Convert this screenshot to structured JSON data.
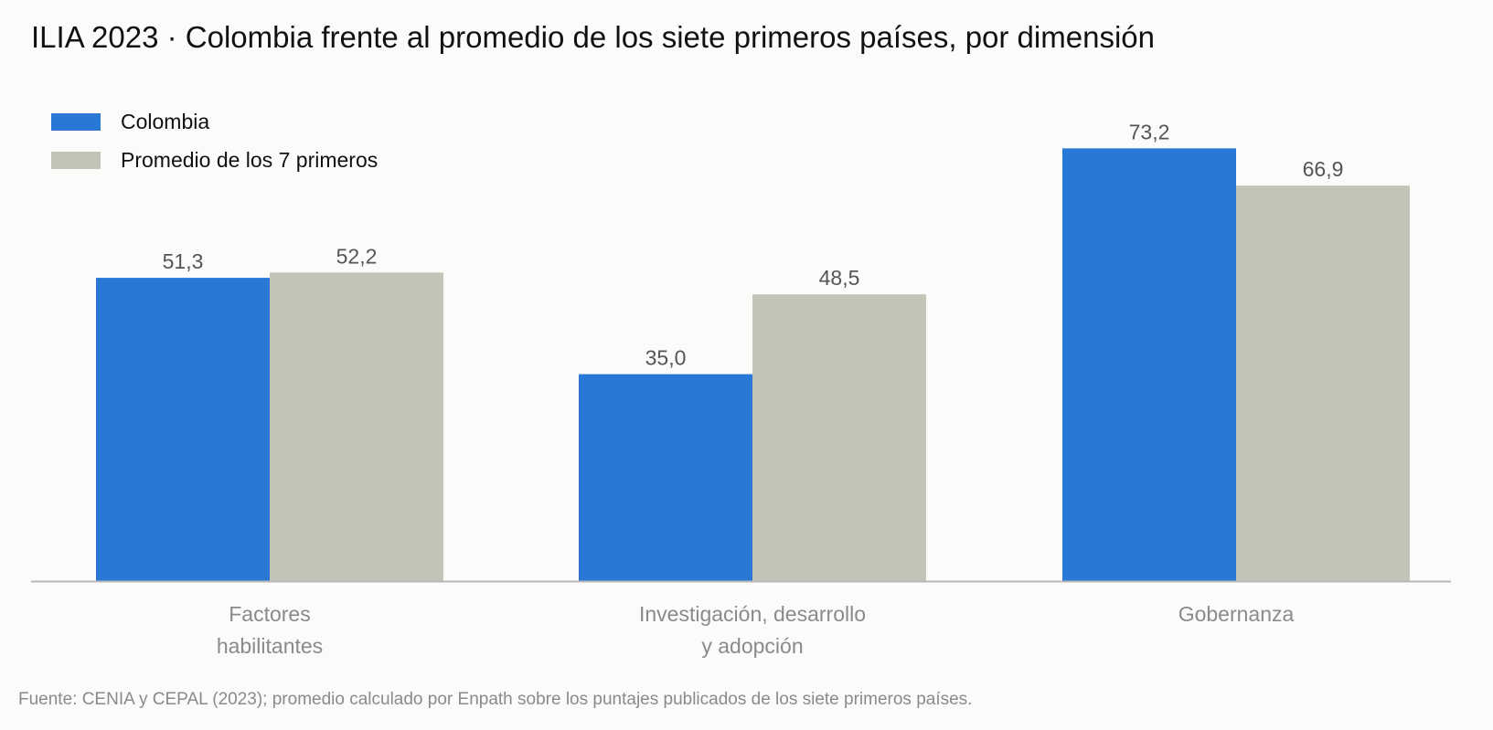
{
  "title": "ILIA 2023 · Colombia frente al promedio de los siete primeros países, por dimensión",
  "source": "Fuente: CENIA y CEPAL (2023); promedio calculado por Enpath sobre los puntajes publicados de los siete primeros países.",
  "colors": {
    "colombia": "#2a78d6",
    "promedio": "#c3c3b8",
    "axis": "#b8b8b8",
    "value_label": "#555555",
    "category_label": "#8a8a8a"
  },
  "chart_data": {
    "type": "bar",
    "title": "ILIA 2023 · Colombia frente al promedio de los siete primeros países, por dimensión",
    "categories": [
      "Factores habilitantes",
      "Investigación, desarrollo y adopción",
      "Gobernanza"
    ],
    "category_lines": [
      [
        "Factores",
        "habilitantes"
      ],
      [
        "Investigación, desarrollo",
        "y adopción"
      ],
      [
        "Gobernanza"
      ]
    ],
    "series": [
      {
        "name": "Colombia",
        "values": [
          51.3,
          35.0,
          73.2
        ],
        "labels": [
          "51,3",
          "35,0",
          "73,2"
        ]
      },
      {
        "name": "Promedio de los 7 primeros",
        "values": [
          52.2,
          48.5,
          66.9
        ],
        "labels": [
          "52,2",
          "48,5",
          "66,9"
        ]
      }
    ],
    "ylim": [
      0,
      80
    ],
    "grid": false,
    "legend": "top-left"
  }
}
